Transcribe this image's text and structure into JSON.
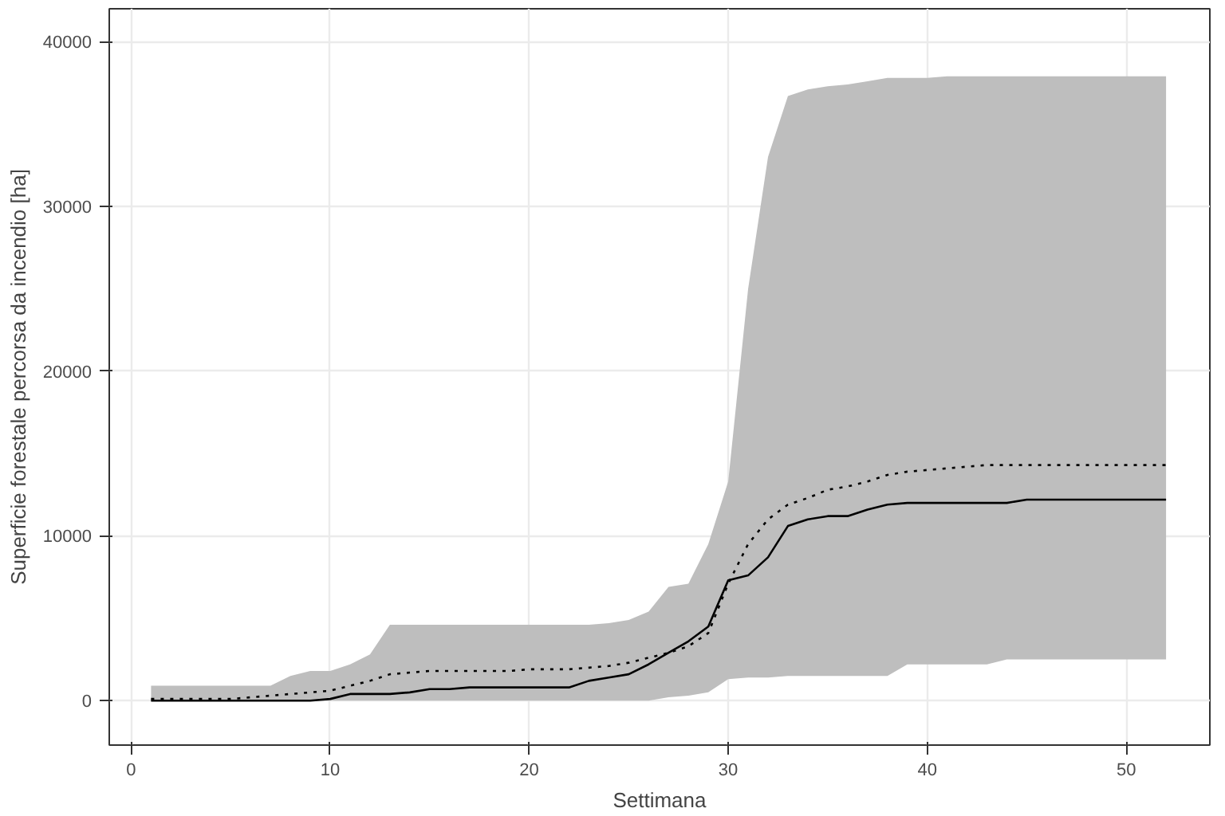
{
  "chart_data": {
    "type": "line",
    "xlabel": "Settimana",
    "ylabel": "Superficie forestale percorsa da incendio [ha]",
    "x": [
      1,
      2,
      3,
      4,
      5,
      6,
      7,
      8,
      9,
      10,
      11,
      12,
      13,
      14,
      15,
      16,
      17,
      18,
      19,
      20,
      21,
      22,
      23,
      24,
      25,
      26,
      27,
      28,
      29,
      30,
      31,
      32,
      33,
      34,
      35,
      36,
      37,
      38,
      39,
      40,
      41,
      42,
      43,
      44,
      45,
      46,
      47,
      48,
      49,
      50,
      51,
      52
    ],
    "series": [
      {
        "color": "#000000",
        "line_style": "solid",
        "values": [
          0,
          0,
          0,
          0,
          0,
          0,
          0,
          0,
          0,
          100,
          400,
          400,
          400,
          500,
          700,
          700,
          800,
          800,
          800,
          800,
          800,
          800,
          1200,
          1400,
          1600,
          2200,
          2900,
          3600,
          4500,
          7300,
          7600,
          8700,
          10600,
          11000,
          11200,
          11200,
          11600,
          11900,
          12000,
          12000,
          12000,
          12000,
          12000,
          12000,
          12200,
          12200,
          12200,
          12200,
          12200,
          12200,
          12200,
          12200
        ],
        "lower": [
          0,
          0,
          0,
          0,
          0,
          0,
          0,
          0,
          0,
          0,
          0,
          0,
          0,
          0,
          0,
          0,
          0,
          0,
          0,
          0,
          0,
          0,
          0,
          0,
          0,
          0,
          200,
          300,
          500,
          1300,
          1400,
          1400,
          1500,
          1500,
          1500,
          1500,
          1500,
          1500,
          2200,
          2200,
          2200,
          2200,
          2200,
          2500,
          2500,
          2500,
          2500,
          2500,
          2500,
          2500,
          2500,
          2500
        ],
        "upper": [
          900,
          900,
          900,
          900,
          900,
          900,
          900,
          1500,
          1800,
          1800,
          2200,
          2800,
          4600,
          4600,
          4600,
          4600,
          4600,
          4600,
          4600,
          4600,
          4600,
          4600,
          4600,
          4700,
          4900,
          5400,
          6900,
          7100,
          9500,
          13300,
          25000,
          33000,
          36700,
          37100,
          37300,
          37400,
          37600,
          37800,
          37800,
          37800,
          37900,
          37900,
          37900,
          37900,
          37900,
          37900,
          37900,
          37900,
          37900,
          37900,
          37900,
          37900
        ]
      },
      {
        "color": "#000000",
        "line_style": "dotted",
        "values": [
          100,
          100,
          100,
          100,
          100,
          200,
          300,
          400,
          500,
          600,
          900,
          1200,
          1600,
          1700,
          1800,
          1800,
          1800,
          1800,
          1800,
          1900,
          1900,
          1900,
          2000,
          2100,
          2300,
          2600,
          2900,
          3300,
          4100,
          7100,
          9500,
          11000,
          11900,
          12300,
          12800,
          13000,
          13300,
          13700,
          13900,
          14000,
          14100,
          14200,
          14300,
          14300,
          14300,
          14300,
          14300,
          14300,
          14300,
          14300,
          14300,
          14300
        ]
      }
    ],
    "xlim": [
      -1.1,
      54.2
    ],
    "ylim": [
      -2700,
      42000
    ],
    "xticks": [
      0,
      10,
      20,
      30,
      40,
      50
    ],
    "yticks": [
      0,
      10000,
      20000,
      30000,
      40000
    ],
    "grid": true
  }
}
